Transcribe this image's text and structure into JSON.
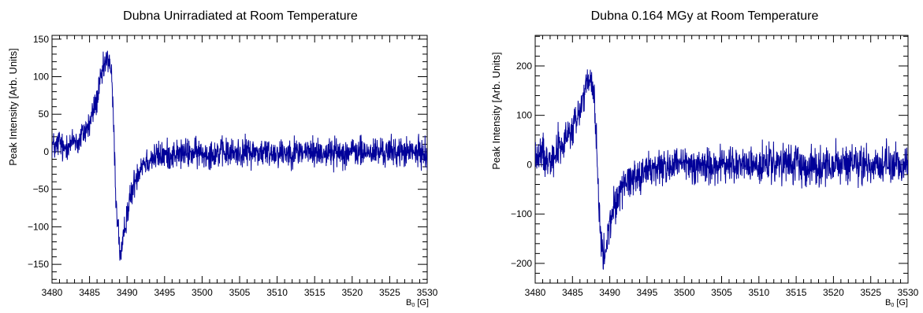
{
  "chart_data": [
    {
      "type": "line",
      "title": "Dubna Unirradiated at Room Temperature",
      "xlabel_main": "B",
      "xlabel_sub": "0",
      "xlabel_unit": " [G]",
      "ylabel": "Peak Intensity [Arb. Units]",
      "xlim": [
        3480,
        3530
      ],
      "ylim": [
        -175,
        155
      ],
      "xticks": [
        3480,
        3485,
        3490,
        3495,
        3500,
        3505,
        3510,
        3515,
        3520,
        3525,
        3530
      ],
      "yticks": [
        -150,
        -100,
        -50,
        0,
        50,
        100,
        150
      ],
      "ytick_labels": [
        "−150",
        "−100",
        "−50",
        "0",
        "50",
        "100",
        "150"
      ],
      "grid": false,
      "color": "#000099",
      "series": [
        {
          "x": [
            3480.0,
            3480.5,
            3481.0,
            3481.5,
            3482.0,
            3482.5,
            3483.0,
            3483.5,
            3484.0,
            3484.5,
            3485.0,
            3485.5,
            3486.0,
            3486.5,
            3487.0,
            3487.3,
            3487.6,
            3487.9,
            3488.2,
            3488.5,
            3488.8,
            3489.1,
            3489.4,
            3489.7,
            3490.0,
            3490.5,
            3491.0,
            3491.5,
            3492.0,
            3493.0,
            3494.0,
            3495.0,
            3496.0,
            3497.0,
            3498.0,
            3500.0,
            3502.0,
            3504.0,
            3506.0,
            3508.0,
            3510.0,
            3512.0,
            3514.0,
            3516.0,
            3518.0,
            3520.0,
            3522.0,
            3524.0,
            3526.0,
            3528.0,
            3530.0
          ],
          "y": [
            10,
            5,
            15,
            0,
            12,
            8,
            18,
            10,
            22,
            30,
            35,
            55,
            70,
            95,
            115,
            120,
            125,
            105,
            40,
            -60,
            -100,
            -140,
            -130,
            -100,
            -80,
            -60,
            -40,
            -25,
            -15,
            -10,
            -6,
            -5,
            -3,
            -3,
            -2,
            -2,
            -1,
            -2,
            0,
            -1,
            -1,
            0,
            0,
            -1,
            -1,
            0,
            -1,
            0,
            0,
            -1,
            -2
          ]
        }
      ]
    },
    {
      "type": "line",
      "title": "Dubna 0.164 MGy at Room Temperature",
      "xlabel_main": "B",
      "xlabel_sub": "0",
      "xlabel_unit": " [G]",
      "ylabel": "Peak Intensity [Arb. Units]",
      "xlim": [
        3480,
        3530
      ],
      "ylim": [
        -240,
        262
      ],
      "xticks": [
        3480,
        3485,
        3490,
        3495,
        3500,
        3505,
        3510,
        3515,
        3520,
        3525,
        3530
      ],
      "yticks": [
        -200,
        -100,
        0,
        100,
        200
      ],
      "ytick_labels": [
        "−200",
        "−100",
        "0",
        "100",
        "200"
      ],
      "grid": false,
      "color": "#000099",
      "series": [
        {
          "x": [
            3480.0,
            3480.5,
            3481.0,
            3481.5,
            3482.0,
            3482.5,
            3483.0,
            3483.5,
            3484.0,
            3484.5,
            3485.0,
            3485.5,
            3486.0,
            3486.5,
            3487.0,
            3487.3,
            3487.6,
            3487.9,
            3488.2,
            3488.5,
            3488.8,
            3489.1,
            3489.4,
            3489.7,
            3490.0,
            3490.5,
            3491.0,
            3491.5,
            3492.0,
            3493.0,
            3494.0,
            3495.0,
            3496.0,
            3497.0,
            3498.0,
            3500.0,
            3502.0,
            3504.0,
            3506.0,
            3508.0,
            3510.0,
            3512.0,
            3514.0,
            3516.0,
            3518.0,
            3520.0,
            3522.0,
            3524.0,
            3526.0,
            3528.0,
            3530.0
          ],
          "y": [
            20,
            10,
            30,
            5,
            25,
            15,
            40,
            30,
            50,
            60,
            70,
            90,
            110,
            140,
            160,
            170,
            160,
            140,
            60,
            -80,
            -150,
            -190,
            -180,
            -150,
            -120,
            -90,
            -70,
            -50,
            -35,
            -25,
            -18,
            -12,
            -8,
            -5,
            -3,
            -2,
            -1,
            -2,
            0,
            -1,
            -1,
            0,
            0,
            -1,
            -1,
            0,
            -1,
            0,
            0,
            -1,
            0
          ]
        }
      ]
    }
  ]
}
